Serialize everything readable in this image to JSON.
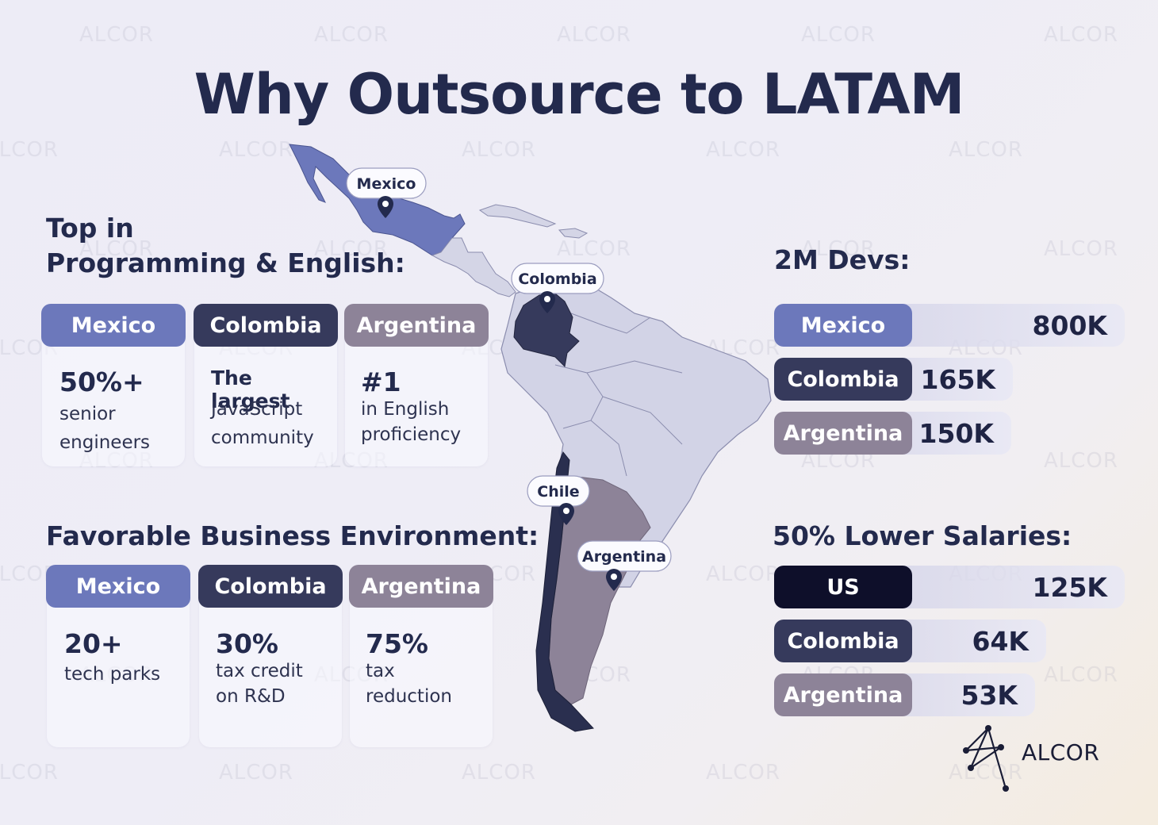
{
  "title": "Why Outsource to LATAM",
  "watermark_text": "ALCOR",
  "top_section": {
    "heading_line1": "Top in",
    "heading_line2": "Programming & English:",
    "countries": [
      {
        "name": "Mexico",
        "big": "50%+",
        "text": "senior engineers"
      },
      {
        "name": "Colombia",
        "big": "The largest",
        "text": "JavaScript community"
      },
      {
        "name": "Argentina",
        "big": "#1",
        "text": "in English proficiency"
      }
    ]
  },
  "business_section": {
    "heading": "Favorable Business Environment:",
    "countries": [
      {
        "name": "Mexico",
        "big": "20+",
        "text": "tech parks"
      },
      {
        "name": "Colombia",
        "big": "30%",
        "text": "tax credit on R&D"
      },
      {
        "name": "Argentina",
        "big": "75%",
        "text": "tax reduction"
      }
    ]
  },
  "devs_section": {
    "heading": "2M Devs:",
    "bars": [
      {
        "label": "Mexico",
        "value_text": "800K",
        "value": 800000
      },
      {
        "label": "Colombia",
        "value_text": "165K",
        "value": 165000
      },
      {
        "label": "Argentina",
        "value_text": "150K",
        "value": 150000
      }
    ]
  },
  "salary_section": {
    "heading": "50% Lower Salaries:",
    "bars": [
      {
        "label": "US",
        "value_text": "125K",
        "value": 125000
      },
      {
        "label": "Colombia",
        "value_text": "64K",
        "value": 64000
      },
      {
        "label": "Argentina",
        "value_text": "53K",
        "value": 53000
      }
    ]
  },
  "map_labels": {
    "mexico": "Mexico",
    "colombia": "Colombia",
    "chile": "Chile",
    "argentina": "Argentina"
  },
  "logo_text": "ALCOR",
  "colors": {
    "navy": "#232a4d",
    "mexico": "#6c78bb",
    "colombia": "#363a5c",
    "argentina": "#8d8398",
    "us": "#0e0f2a",
    "map_land": "#d2d3e6",
    "chile": "#2a2f4f"
  }
}
